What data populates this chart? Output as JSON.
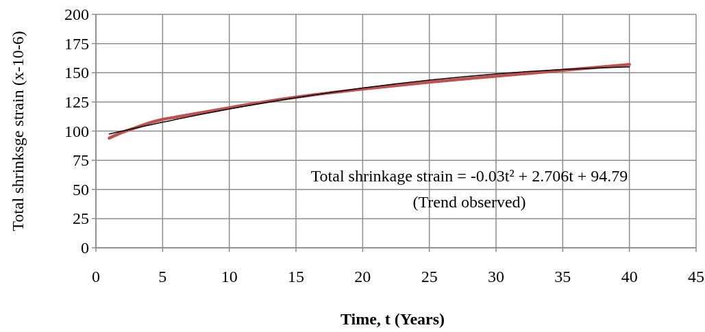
{
  "chart_data": {
    "type": "line",
    "xlabel": "Time, t (Years)",
    "ylabel": "Total shrinksge strain (x-10-6)",
    "xlim": [
      0,
      45
    ],
    "xticks": [
      0,
      5,
      10,
      15,
      20,
      25,
      30,
      35,
      40,
      45
    ],
    "ylim": [
      0,
      200
    ],
    "yticks": [
      0,
      25,
      50,
      75,
      100,
      125,
      150,
      175,
      200
    ],
    "grid": true,
    "series": [
      {
        "color": "#c0504d",
        "x": [
          1,
          2,
          3,
          4,
          5,
          6,
          8,
          10,
          15,
          20,
          25,
          30,
          35,
          40
        ],
        "values": [
          94,
          99,
          103,
          107,
          110,
          112,
          116,
          120,
          129,
          136,
          142,
          147,
          152,
          157
        ]
      },
      {
        "color": "#000000",
        "x": [
          1,
          5,
          10,
          15,
          20,
          25,
          30,
          35,
          40
        ],
        "values": [
          97.5,
          107.6,
          118.9,
          128.6,
          136.9,
          143.7,
          149,
          152.8,
          155
        ]
      }
    ],
    "annotations": [
      "Total shrinkage strain = -0.03t² + 2.706t + 94.79",
      "(Trend observed)"
    ]
  }
}
